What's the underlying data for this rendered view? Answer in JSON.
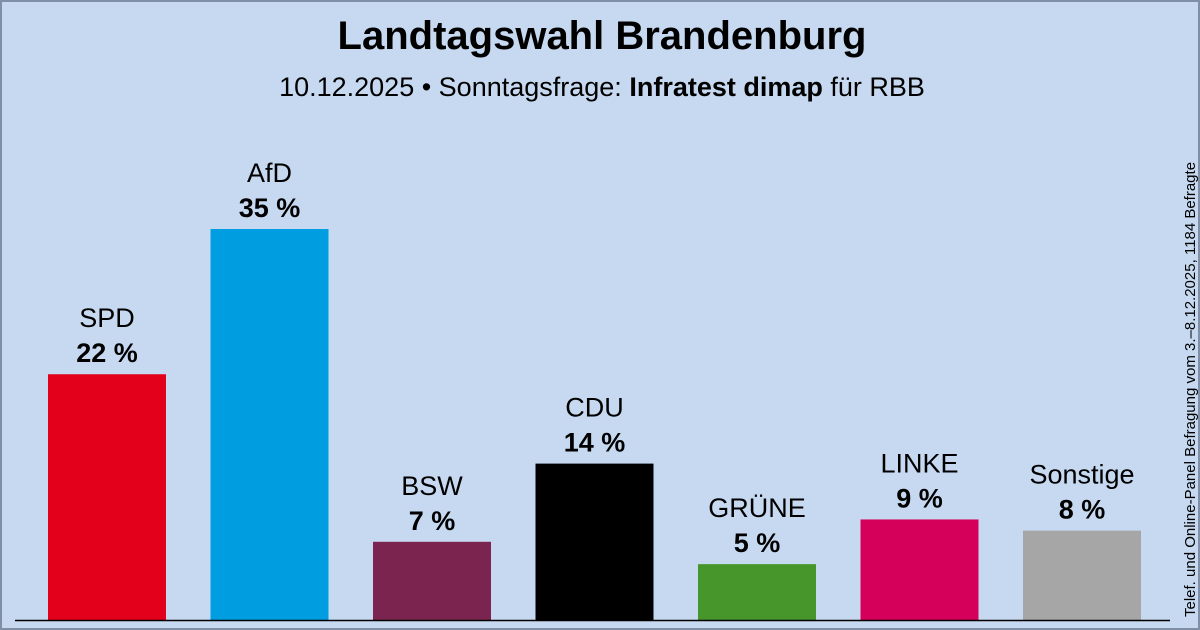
{
  "header": {
    "title": "Landtagswahl Brandenburg",
    "subtitle_prefix": "10.12.2025 • Sonntagsfrage:",
    "subtitle_source": "Infratest dimap",
    "subtitle_suffix": "für RBB"
  },
  "side_note": "Telef. und Online-Panel Befragung vom 3.–8.12.2025, 1184 Befragte",
  "chart_data": {
    "type": "bar",
    "title": "Landtagswahl Brandenburg",
    "categories": [
      "SPD",
      "AfD",
      "BSW",
      "CDU",
      "GRÜNE",
      "LINKE",
      "Sonstige"
    ],
    "values": [
      22,
      35,
      7,
      14,
      5,
      9,
      8
    ],
    "value_labels": [
      "22 %",
      "35 %",
      "7 %",
      "14 %",
      "5 %",
      "9 %",
      "8 %"
    ],
    "colors": [
      "#e3001b",
      "#009ee0",
      "#7b2450",
      "#000000",
      "#46962b",
      "#d4005a",
      "#a6a6a6"
    ],
    "ylabel": "",
    "ylim": [
      0,
      35
    ],
    "grid": false
  }
}
